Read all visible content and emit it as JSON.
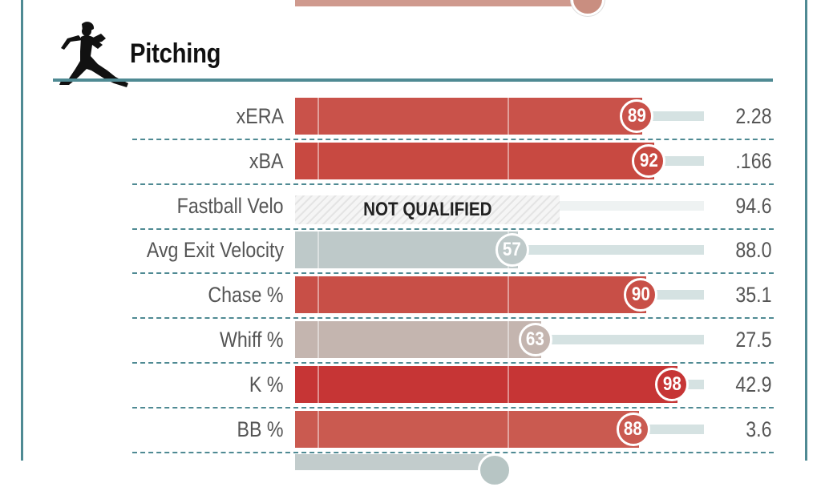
{
  "section": {
    "title": "Pitching",
    "icon": "pitcher-icon"
  },
  "colors": {
    "frame": "#4f8a93",
    "track": "#d5e2e2"
  },
  "not_qualified_label": "NOT QUALIFIED",
  "chart_data": {
    "type": "bar",
    "orientation": "horizontal",
    "title": "Pitching",
    "xlim": [
      0,
      100
    ],
    "categories": [
      "xERA",
      "xBA",
      "Fastball Velo",
      "Avg Exit Velocity",
      "Chase %",
      "Whiff %",
      "K %",
      "BB %"
    ],
    "percentiles": [
      89,
      92,
      null,
      57,
      90,
      63,
      98,
      88
    ],
    "stat_values": [
      "2.28",
      ".166",
      "94.6",
      "88.0",
      "35.1",
      "27.5",
      "42.9",
      "3.6"
    ],
    "qualified": [
      true,
      true,
      false,
      true,
      true,
      true,
      true,
      true
    ],
    "bar_colors": [
      "#c9524a",
      "#c84941",
      "#e4e4e4",
      "#bec9c9",
      "#c84f47",
      "#c4b5af",
      "#c63535",
      "#ca5a50"
    ]
  }
}
